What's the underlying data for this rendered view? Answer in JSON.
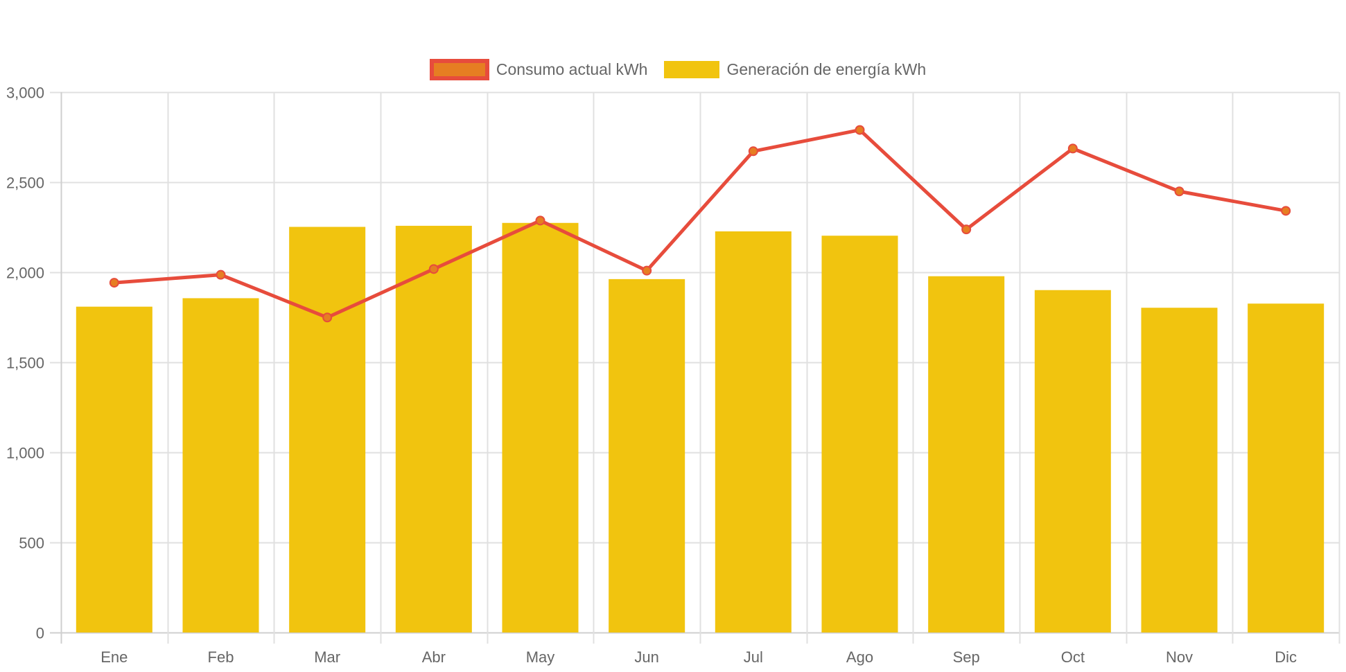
{
  "chart_data": {
    "type": "bar",
    "title": "",
    "xlabel": "",
    "ylabel": "",
    "categories": [
      "Ene",
      "Feb",
      "Mar",
      "Abr",
      "May",
      "Jun",
      "Jul",
      "Ago",
      "Sep",
      "Oct",
      "Nov",
      "Dic"
    ],
    "ylim": [
      0,
      3000
    ],
    "yticks": [
      0,
      500,
      1000,
      1500,
      2000,
      2500,
      3000
    ],
    "ytick_labels": [
      "0",
      "500",
      "1,000",
      "1,500",
      "2,000",
      "2,500",
      "3,000"
    ],
    "grid": true,
    "legend_position": "top-center",
    "series": [
      {
        "name": "Consumo actual kWh",
        "type": "line",
        "color": "#e74c3c",
        "point_color": "#e67e22",
        "values": [
          1942,
          1986,
          1749,
          2018,
          2287,
          2009,
          2672,
          2790,
          2238,
          2687,
          2449,
          2341
        ]
      },
      {
        "name": "Generación de energía kWh",
        "type": "bar",
        "color": "#f1c40f",
        "values": [
          1809,
          1856,
          2252,
          2258,
          2274,
          1962,
          2227,
          2203,
          1978,
          1901,
          1803,
          1826
        ]
      }
    ]
  },
  "legend": {
    "items": [
      {
        "label": "Consumo actual kWh"
      },
      {
        "label": "Generación de energía kWh"
      }
    ]
  }
}
